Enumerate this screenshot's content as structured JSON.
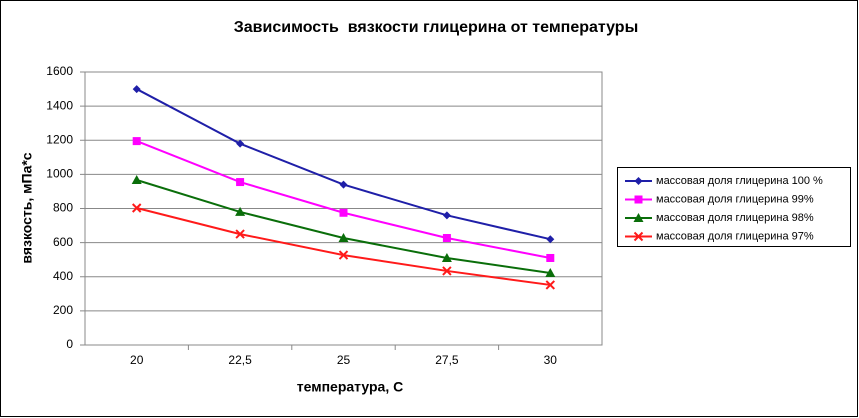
{
  "chart_data": {
    "type": "line",
    "title": "Зависимость  вязкости глицерина от температуры",
    "x_label": "температура, С",
    "y_label": "вязкость, мПа*с",
    "categories": [
      "20",
      "22,5",
      "25",
      "27,5",
      "30"
    ],
    "series": [
      {
        "name": "массовая доля глицерина 100 %",
        "color": "#1f1fa8",
        "marker": "diamond",
        "values": [
          1500,
          1180,
          940,
          760,
          620
        ]
      },
      {
        "name": "массовая доля глицерина 99%",
        "color": "#ff00ff",
        "marker": "square",
        "values": [
          1195,
          955,
          775,
          627,
          510
        ]
      },
      {
        "name": "массовая доля глицерина 98%",
        "color": "#0a6e0a",
        "marker": "triangle",
        "values": [
          967,
          780,
          627,
          510,
          422
        ]
      },
      {
        "name": "массовая доля глицерина 97%",
        "color": "#ff1a1a",
        "marker": "x",
        "values": [
          803,
          650,
          527,
          434,
          352
        ]
      }
    ],
    "ylim": [
      0,
      1600
    ],
    "yticks": [
      0,
      200,
      400,
      600,
      800,
      1000,
      1200,
      1400,
      1600
    ],
    "grid": true,
    "legend": "right"
  }
}
